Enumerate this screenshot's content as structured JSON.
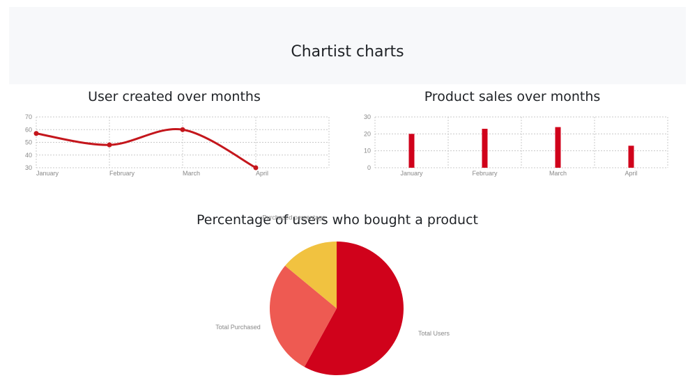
{
  "page": {
    "title": "Chartist charts"
  },
  "colors": {
    "primary": "#d0021b",
    "line": "#c4161c",
    "salmon": "#ee5a52",
    "yellow": "#f1c240",
    "grid": "#c8c8c8",
    "label": "#888888"
  },
  "chart_data": [
    {
      "type": "line",
      "title": "User created over months",
      "categories": [
        "January",
        "February",
        "March",
        "April"
      ],
      "series": [
        {
          "values": [
            57,
            48,
            60,
            30
          ]
        }
      ],
      "yticks": [
        30,
        40,
        50,
        60,
        70
      ],
      "ylim": [
        30,
        70
      ],
      "smooth": true,
      "grid": true
    },
    {
      "type": "bar",
      "title": "Product sales over months",
      "categories": [
        "January",
        "February",
        "March",
        "April"
      ],
      "series": [
        {
          "values": [
            20,
            23,
            24,
            13
          ]
        }
      ],
      "yticks": [
        0,
        10,
        20,
        30
      ],
      "ylim": [
        0,
        30
      ],
      "grid": true
    },
    {
      "type": "pie",
      "title": "Percentage of users who bought a product",
      "labels": [
        "Total Users",
        "Total Purchased",
        "Purchased percentage"
      ],
      "values": [
        58,
        28,
        14
      ]
    }
  ]
}
